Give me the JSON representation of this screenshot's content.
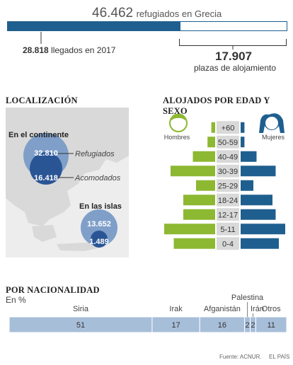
{
  "header": {
    "total_value": "46.462",
    "total_label": "refugiados en Grecia",
    "total": 46462,
    "arrived_value": "28.818",
    "arrived_label": "llegados en 2017",
    "arrived": 28818,
    "places_value": "17.907",
    "places_label": "plazas de alojamiento",
    "places": 17907,
    "bar_color": "#1f5f8f"
  },
  "map_section": {
    "title": "LOCALIZACIÓN",
    "mainland_label": "En el continente",
    "mainland_refugees": "32.810",
    "mainland_housed": "16.418",
    "refugees_label": "Refugiados",
    "housed_label": "Acomodados",
    "islands_label": "En las islas",
    "islands_refugees": "13.652",
    "islands_housed": "1.489",
    "map_color": "#d9d9d9",
    "outer_circle_color": "#7f9fc9",
    "inner_circle_color": "#2a5595"
  },
  "pyramid_section": {
    "title": "ALOJADOS POR EDAD Y SEXO",
    "men_label": "Hombres",
    "women_label": "Mujeres",
    "men_color": "#8db832",
    "women_color": "#1f5f8f",
    "age_band_color": "#d9d9d9"
  },
  "nationality_section": {
    "title": "POR NACIONALIDAD",
    "subtitle": "En %",
    "bar_color": "#a7bed9"
  },
  "footer": {
    "source": "Fuente: ACNUR.",
    "brand": "EL PAÍS"
  },
  "chart_data": [
    {
      "type": "bar",
      "title": "ALOJADOS POR EDAD Y SEXO",
      "categories": [
        "+60",
        "50-59",
        "40-49",
        "30-39",
        "25-29",
        "18-24",
        "12-17",
        "5-11",
        "0-4"
      ],
      "series": [
        {
          "name": "Hombres",
          "values": [
            0.6,
            1.2,
            3.5,
            7.0,
            3.0,
            5.0,
            5.0,
            8.0,
            6.5
          ]
        },
        {
          "name": "Mujeres",
          "values": [
            0.6,
            0.6,
            2.5,
            5.5,
            2.0,
            5.0,
            5.5,
            7.0,
            6.0
          ]
        }
      ]
    },
    {
      "type": "bar",
      "title": "POR NACIONALIDAD",
      "ylabel": "En %",
      "categories": [
        "Siria",
        "Irak",
        "Afganistán",
        "Palestina",
        "Irán",
        "Otros"
      ],
      "values": [
        51,
        17,
        16,
        2,
        2,
        11
      ]
    }
  ]
}
